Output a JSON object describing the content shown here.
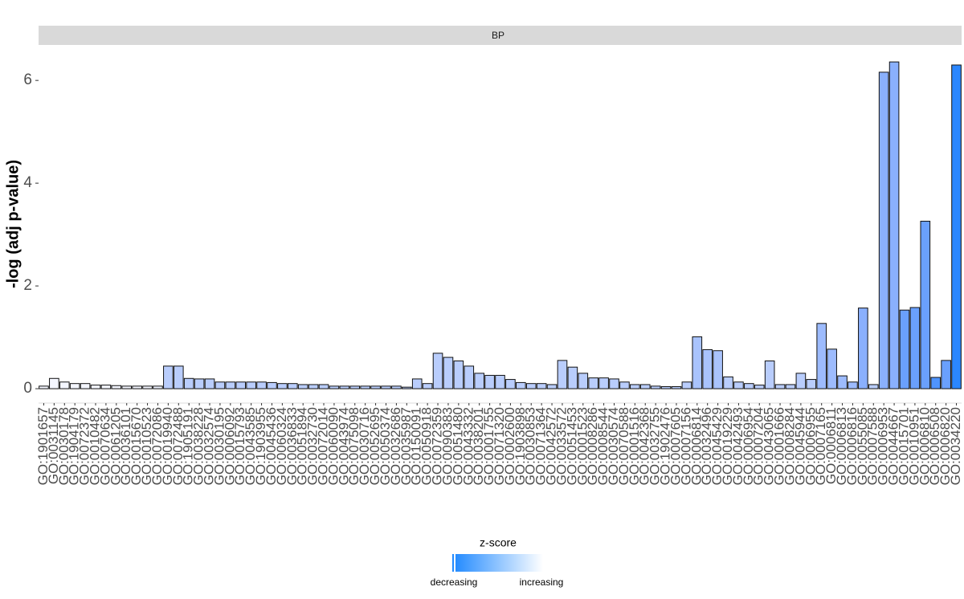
{
  "chart_data": {
    "type": "bar",
    "facet": "BP",
    "ylabel": "-log (adj p-value)",
    "categories": [
      "GO:1901657",
      "GO:0031145",
      "GO:0030178",
      "GO:1904179",
      "GO:0072372",
      "GO:0010482",
      "GO:0070634",
      "GO:0061205",
      "GO:0036101",
      "GO:0015670",
      "GO:0010523",
      "GO:0072086",
      "GO:0019940",
      "GO:0072488",
      "GO:1905191",
      "GO:0038228",
      "GO:0032574",
      "GO:0030195",
      "GO:0006092",
      "GO:0015793",
      "GO:0043585",
      "GO:1903955",
      "GO:0045436",
      "GO:0060324",
      "GO:0036833",
      "GO:0051894",
      "GO:0032730",
      "GO:0072014",
      "GO:0060090",
      "GO:0043974",
      "GO:0075098",
      "GO:0030716",
      "GO:0052695",
      "GO:0050374",
      "GO:0032686",
      "GO:0035987",
      "GO:0150091",
      "GO:0050918",
      "GO:0072359",
      "GO:0090383",
      "GO:0051480",
      "GO:0043332",
      "GO:0038201",
      "GO:0001755",
      "GO:0071320",
      "GO:0002600",
      "GO:1903898",
      "GO:0030853",
      "GO:0071364",
      "GO:0042572",
      "GO:0033572",
      "GO:0051453",
      "GO:0001523",
      "GO:0008286",
      "GO:0008544",
      "GO:0030574",
      "GO:0070588",
      "GO:0001516",
      "GO:0042368",
      "GO:0032755",
      "GO:1902476",
      "GO:0007605",
      "GO:0007156",
      "GO:0006814",
      "GO:0032496",
      "GO:0045429",
      "GO:0019229",
      "GO:0042493",
      "GO:0006954",
      "GO:0007204",
      "GO:0043065",
      "GO:0001666",
      "GO:0008284",
      "GO:0045944",
      "GO:0006955",
      "GO:0007165",
      "GO:0006811",
      "GO:0006813",
      "GO:0006816",
      "GO:0055085",
      "GO:0007588",
      "GO:0006953",
      "GO:0044667",
      "GO:0015701",
      "GO:0010951",
      "GO:0006810",
      "GO:0006508",
      "GO:0006820",
      "GO:0034220"
    ],
    "values": [
      0.05,
      0.2,
      0.13,
      0.1,
      0.1,
      0.07,
      0.07,
      0.06,
      0.05,
      0.05,
      0.05,
      0.05,
      0.44,
      0.44,
      0.2,
      0.19,
      0.19,
      0.13,
      0.13,
      0.13,
      0.13,
      0.13,
      0.12,
      0.1,
      0.1,
      0.08,
      0.08,
      0.08,
      0.05,
      0.05,
      0.05,
      0.05,
      0.05,
      0.05,
      0.05,
      0.03,
      0.19,
      0.1,
      0.69,
      0.61,
      0.54,
      0.44,
      0.3,
      0.26,
      0.26,
      0.18,
      0.12,
      0.1,
      0.1,
      0.08,
      0.55,
      0.42,
      0.3,
      0.21,
      0.21,
      0.19,
      0.13,
      0.08,
      0.08,
      0.05,
      0.04,
      0.04,
      0.13,
      1.01,
      0.76,
      0.74,
      0.23,
      0.13,
      0.1,
      0.07,
      0.54,
      0.08,
      0.08,
      0.3,
      0.18,
      1.27,
      0.77,
      0.25,
      0.13,
      1.57,
      0.08,
      6.16,
      6.36,
      1.53,
      1.58,
      3.26,
      0.22,
      0.55,
      6.3
    ],
    "colors": [
      "#f4f6ff",
      "#f4f6ff",
      "#f4f6ff",
      "#f4f6ff",
      "#f4f6ff",
      "#f4f6ff",
      "#f4f6ff",
      "#f4f6ff",
      "#f4f6ff",
      "#f4f6ff",
      "#f4f6ff",
      "#eef2ff",
      "#b9cdfc",
      "#b9cdfc",
      "#b9cdfc",
      "#b9cdfc",
      "#b9cdfc",
      "#b9cdfc",
      "#b9cdfc",
      "#b9cdfc",
      "#b9cdfc",
      "#b9cdfc",
      "#b9cdfc",
      "#b9cdfc",
      "#b9cdfc",
      "#b9cdfc",
      "#b9cdfc",
      "#b9cdfc",
      "#b9cdfc",
      "#b9cdfc",
      "#b9cdfc",
      "#b9cdfc",
      "#b9cdfc",
      "#b9cdfc",
      "#b9cdfc",
      "#b9cdfc",
      "#b9cdfc",
      "#b9cdfc",
      "#b9cdfc",
      "#b9cdfc",
      "#b9cdfc",
      "#b9cdfc",
      "#b9cdfc",
      "#b9cdfc",
      "#b9cdfc",
      "#b9cdfc",
      "#b9cdfc",
      "#b9cdfc",
      "#b9cdfc",
      "#b9cdfc",
      "#b9cdfc",
      "#b9cdfc",
      "#b9cdfc",
      "#b9cdfc",
      "#b9cdfc",
      "#b9cdfc",
      "#b9cdfc",
      "#b9cdfc",
      "#b9cdfc",
      "#b9cdfc",
      "#b9cdfc",
      "#b9cdfc",
      "#b9cdfc",
      "#a9c3fc",
      "#a9c3fc",
      "#a9c3fc",
      "#b9cdfc",
      "#b9cdfc",
      "#b9cdfc",
      "#b9cdfc",
      "#b9cdfc",
      "#b9cdfc",
      "#b9cdfc",
      "#b9cdfc",
      "#b9cdfc",
      "#9dbbfd",
      "#9dbbfd",
      "#9dbbfd",
      "#9dbbfd",
      "#8ab0fd",
      "#b9cdfc",
      "#8ab0fd",
      "#8ab0fd",
      "#6aa0fd",
      "#6aa0fd",
      "#6aa0fd",
      "#4f94fd",
      "#6aa0fd",
      "#2b87ff"
    ],
    "ylim": [
      -0.28,
      6.69
    ],
    "yticks": [
      0,
      2,
      4,
      6
    ],
    "legend": {
      "title": "z-score",
      "low": "decreasing",
      "high": "increasing",
      "colors": [
        "#1e88ff",
        "#ffffff"
      ]
    }
  }
}
